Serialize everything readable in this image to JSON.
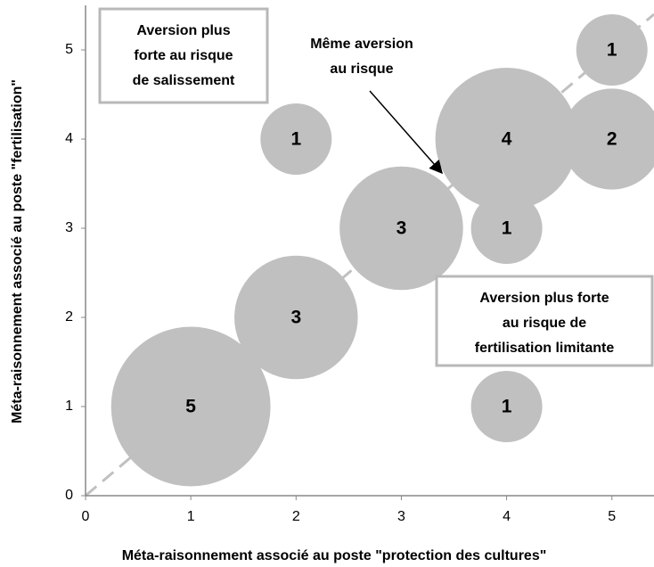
{
  "chart_data": {
    "type": "bubble",
    "x_label": "Méta-raisonnement associé au poste \"protection des cultures\"",
    "y_label": "Méta-raisonnement associé au poste \"fertilisation\"",
    "x": [
      1,
      2,
      3,
      4,
      2,
      4,
      4,
      5,
      5
    ],
    "y": [
      1,
      2,
      3,
      4,
      4,
      3,
      1,
      5,
      4
    ],
    "sizes": [
      5,
      3,
      3,
      4,
      1,
      1,
      1,
      1,
      2
    ],
    "color": "#c0c0c0",
    "xlim": [
      0,
      5.4
    ],
    "ylim": [
      0,
      5.5
    ],
    "xticks": [
      0,
      1,
      2,
      3,
      4,
      5
    ],
    "yticks": [
      0,
      1,
      2,
      3,
      4,
      5
    ],
    "annotations": [
      {
        "lines": [
          "Aversion plus",
          "forte au risque",
          "de salissement"
        ]
      },
      {
        "lines": [
          "Même aversion",
          "au risque"
        ]
      },
      {
        "lines": [
          "Aversion plus forte",
          "au risque de",
          "fertilisation limitante"
        ]
      }
    ]
  }
}
